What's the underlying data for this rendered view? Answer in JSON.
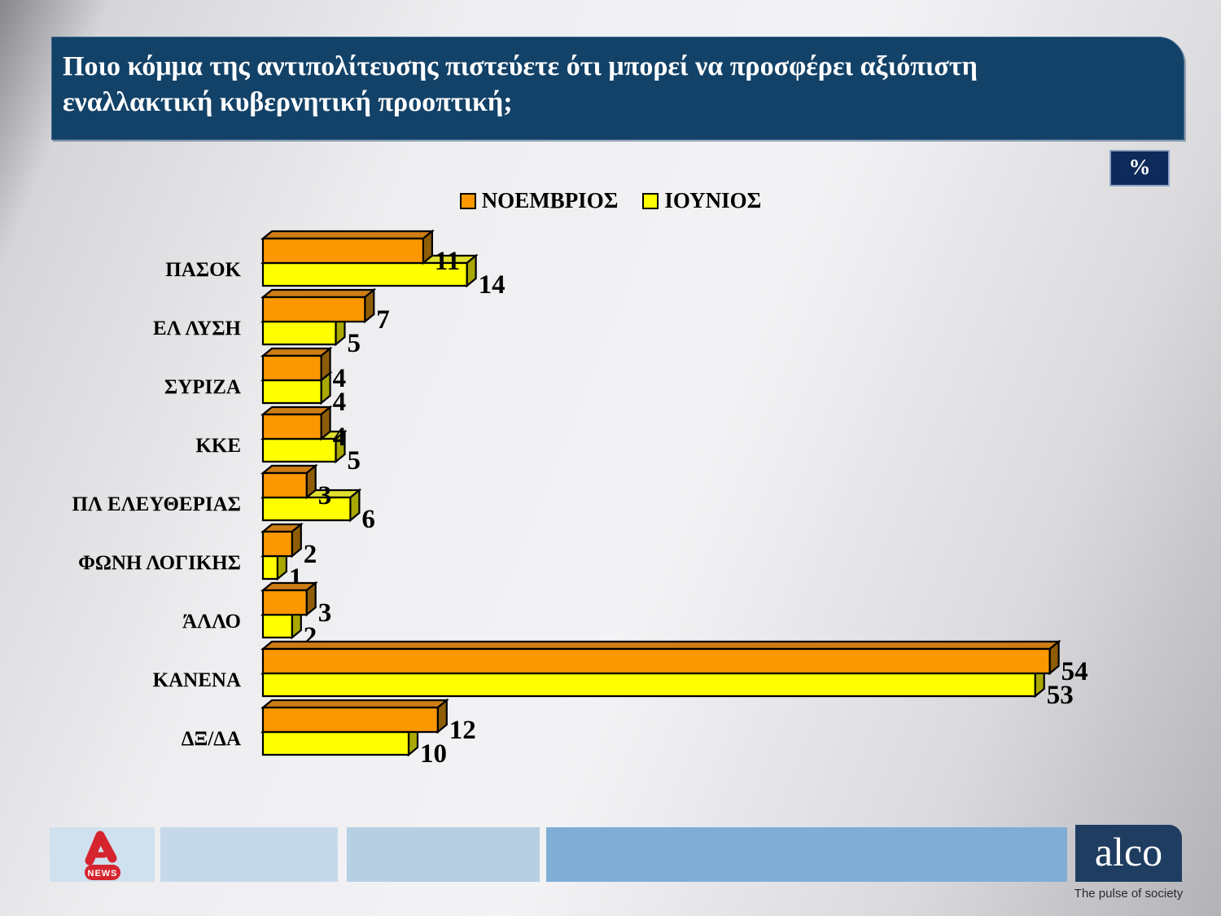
{
  "title": {
    "text": "Ποιο κόμμα της αντιπολίτευσης πιστεύετε ότι μπορεί να προσφέρει αξιόπιστη εναλλακτική κυβερνητική προοπτική;"
  },
  "percent_label": "%",
  "chart_data": {
    "type": "bar",
    "orientation": "horizontal",
    "units": "%",
    "title": "",
    "xlabel": "",
    "ylabel": "",
    "xlim": [
      0,
      60
    ],
    "grid": false,
    "legend_position": "top-center",
    "categories": [
      "ΠΑΣΟΚ",
      "ΕΛ ΛΥΣΗ",
      "ΣΥΡΙΖΑ",
      "ΚΚΕ",
      "ΠΛ ΕΛΕΥΘΕΡΙΑΣ",
      "ΦΩΝΗ ΛΟΓΙΚΗΣ",
      "ΆΛΛΟ",
      "ΚΑΝΕΝΑ",
      "ΔΞ/ΔΑ"
    ],
    "series": [
      {
        "name": "ΝΟΕΜΒΡΙΟΣ",
        "color": "#FB9800",
        "top_color": "#CE7D15",
        "side_color": "#8F5D05",
        "values": [
          11,
          7,
          4,
          4,
          3,
          2,
          3,
          54,
          12
        ]
      },
      {
        "name": "ΙΟΥΝΙΟΣ",
        "color": "#FFFF00",
        "top_color": "#E0E02E",
        "side_color": "#A8A800",
        "values": [
          14,
          5,
          4,
          5,
          6,
          1,
          2,
          53,
          10
        ]
      }
    ],
    "value_labels": true
  },
  "footer": {
    "alpha_news_label": "NEWS",
    "alco_logo_text": "alco",
    "alco_tagline": "The pulse of society"
  },
  "colors": {
    "title_bg": "#134268",
    "percent_bg": "#0E2A5A",
    "footer_seg1": "#CFE0EE",
    "footer_seg2": "#C5D9EA",
    "footer_seg3": "#B6CFE3",
    "footer_seg4": "#7FADD6",
    "alco_bg": "#1E3D61",
    "alpha_red": "#D6242F"
  }
}
